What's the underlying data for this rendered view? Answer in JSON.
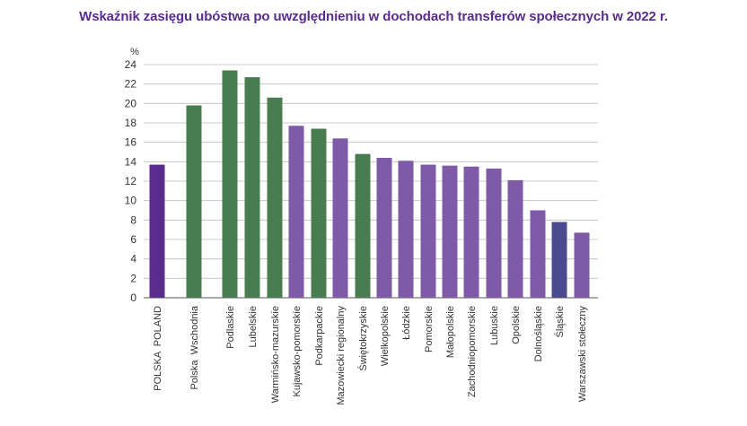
{
  "chart_data": {
    "type": "bar",
    "title": "Wskaźnik zasięgu ubóstwa po uwzględnieniu w dochodach transferów społecznych w 2022 r.",
    "ylabel": "%",
    "xlabel": "",
    "ylim": [
      0,
      24
    ],
    "yticks": [
      "0",
      "2",
      "4",
      "6",
      "8",
      "10",
      "12",
      "14",
      "16",
      "18",
      "20",
      "22",
      "24"
    ],
    "grid": true,
    "categories": [
      "POLSKA  POLAND",
      "Polska  Wschodnia",
      "Podlaskie",
      "Lubelskie",
      "Warmińsko-mazurskie",
      "Kujawsko-pomorskie",
      "Podkarpackie",
      "Mazowiecki regionalny",
      "Świętokrzyskie",
      "Wielkopolskie",
      "Łódzkie",
      "Pomorskie",
      "Małopolskie",
      "Zachodniopomorskie",
      "Lubuskie",
      "Opolskie",
      "Dolnośląskie",
      "Śląskie",
      "Warszawski stołeczny"
    ],
    "values": [
      13.7,
      19.8,
      23.4,
      22.7,
      20.6,
      17.7,
      17.4,
      16.4,
      14.8,
      14.4,
      14.1,
      13.7,
      13.6,
      13.5,
      13.3,
      12.1,
      9.0,
      7.8,
      6.7
    ],
    "bar_colors": [
      "#5a2d8c",
      "#4a7c52",
      "#4a7c52",
      "#4a7c52",
      "#4a7c52",
      "#7f5aa6",
      "#4a7c52",
      "#7f5aa6",
      "#4a7c52",
      "#7f5aa6",
      "#7f5aa6",
      "#7f5aa6",
      "#7f5aa6",
      "#7f5aa6",
      "#7f5aa6",
      "#7f5aa6",
      "#7f5aa6",
      "#4a4a8e",
      "#7f5aa6"
    ]
  }
}
